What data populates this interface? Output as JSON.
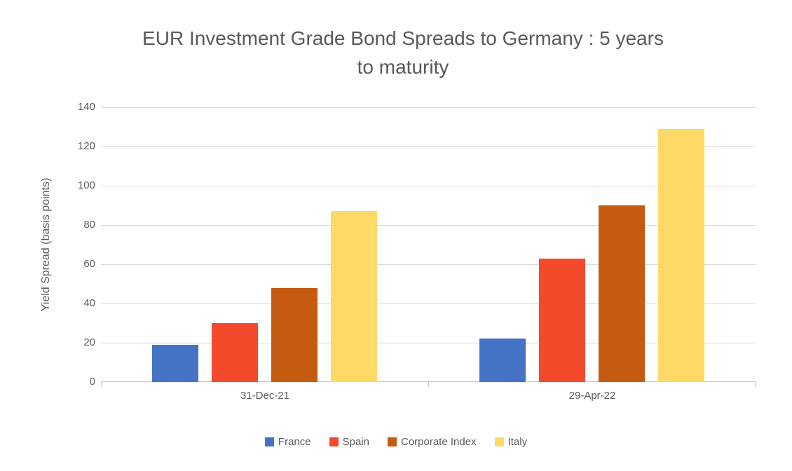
{
  "header": {
    "title_line1": "EUR Investment Grade Bond Spreads to Germany : 5 years",
    "title_line2": "to maturity"
  },
  "chart_data": {
    "type": "bar",
    "title": "EUR Investment Grade Bond Spreads to Germany : 5 years to maturity",
    "categories": [
      "31-Dec-21",
      "29-Apr-22"
    ],
    "series": [
      {
        "name": "France",
        "color": "#4472C4",
        "values": [
          19,
          22
        ]
      },
      {
        "name": "Spain",
        "color": "#F44A2C",
        "values": [
          30,
          63
        ]
      },
      {
        "name": "Corporate Index",
        "color": "#C55A11",
        "values": [
          48,
          90
        ]
      },
      {
        "name": "Italy",
        "color": "#FFD966",
        "values": [
          87,
          129
        ]
      }
    ],
    "xlabel": "",
    "ylabel": "Yield Spread (basis points)",
    "ylim": [
      0,
      140
    ],
    "yticks": [
      0,
      20,
      40,
      60,
      80,
      100,
      120,
      140
    ],
    "grid": true,
    "legend_position": "bottom"
  },
  "colors": {
    "background": "#FFFFFF",
    "text": "#595959",
    "gridline": "#D9D9D9",
    "axis_line": "#C6C6C6"
  }
}
